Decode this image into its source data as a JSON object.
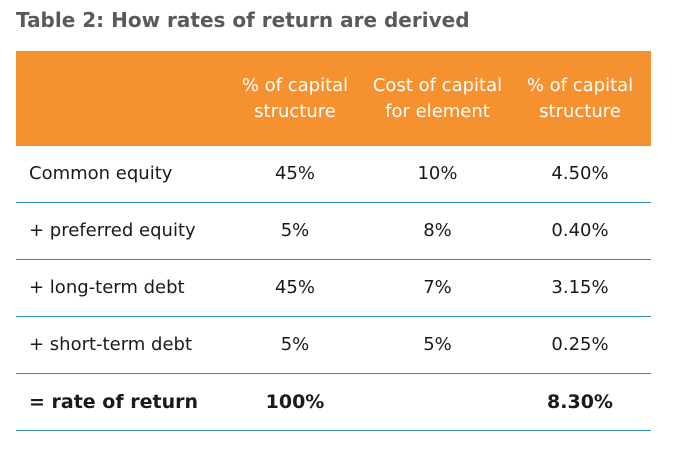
{
  "title": "Table 2: How rates of return are derived",
  "table": {
    "headers": [
      "",
      "% of capital structure",
      "Cost of capital for element",
      "% of capital structure"
    ],
    "rows": [
      {
        "label": "Common equity",
        "pct": "45%",
        "cost": "10%",
        "result": "4.50%"
      },
      {
        "label": "+ preferred equity",
        "pct": "5%",
        "cost": "8%",
        "result": "0.40%"
      },
      {
        "label": "+ long-term debt",
        "pct": "45%",
        "cost": "7%",
        "result": "3.15%"
      },
      {
        "label": "+ short-term debt",
        "pct": "5%",
        "cost": "5%",
        "result": "0.25%"
      },
      {
        "label": "= rate of return",
        "pct": "100%",
        "cost": "",
        "result": "8.30%"
      }
    ]
  },
  "colors": {
    "header_bg": "#f5922f",
    "header_text": "#ffffff",
    "title_text": "#5a5a5a",
    "row_divider": "#2b8aa6"
  }
}
